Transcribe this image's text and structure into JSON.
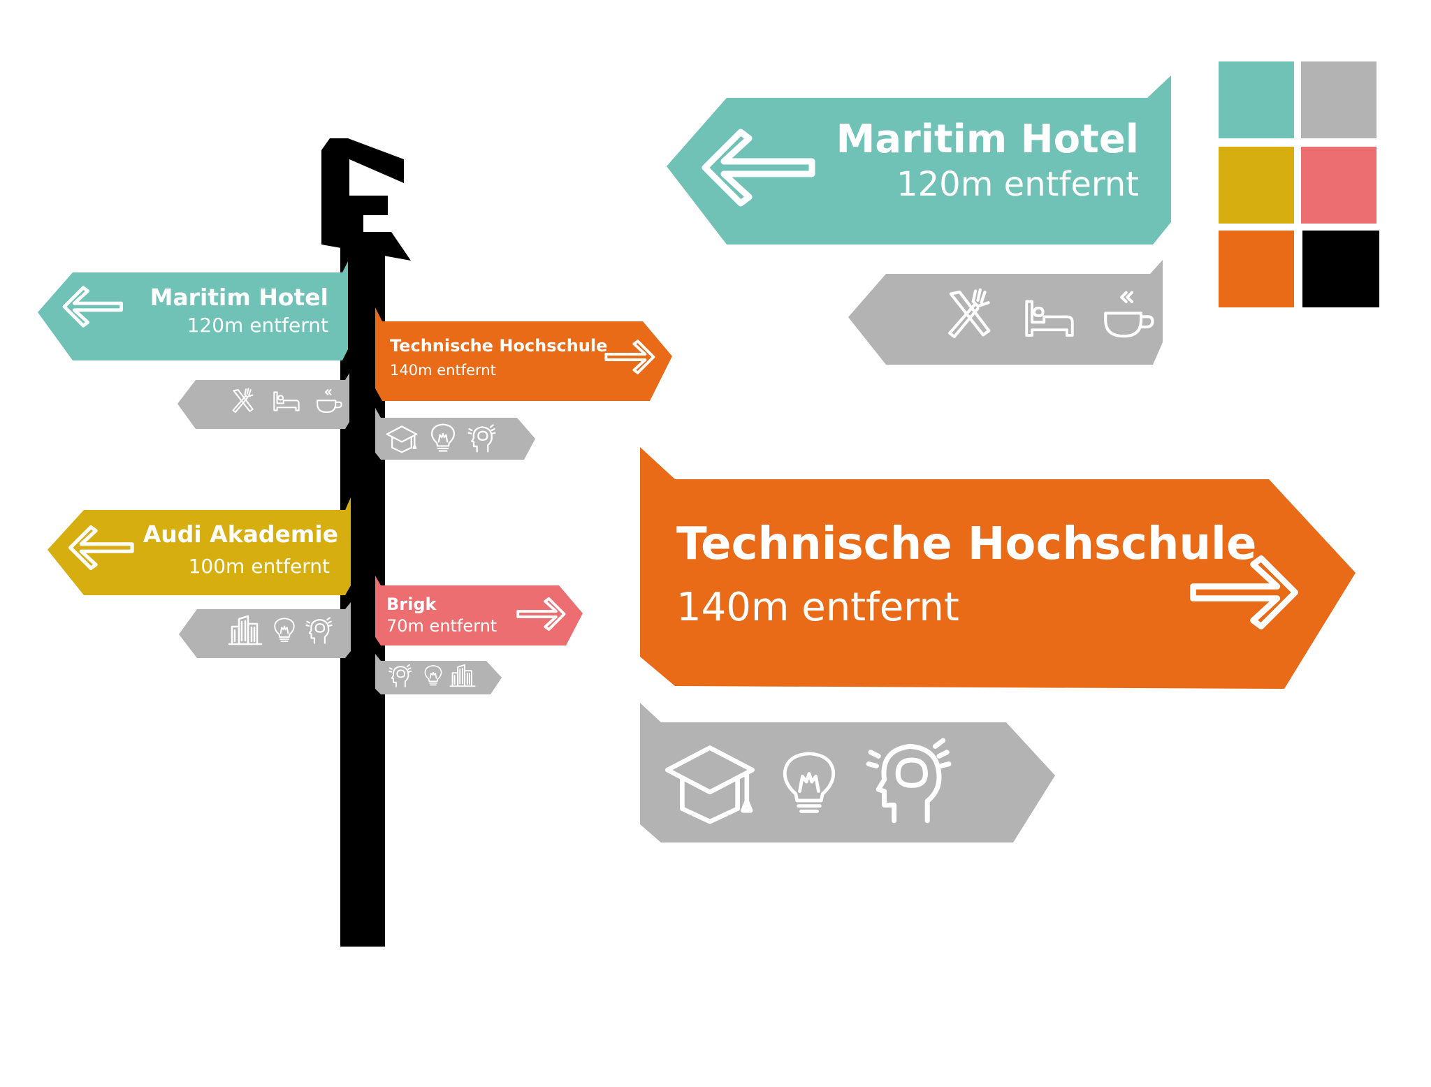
{
  "colors": {
    "teal": "#71c2b6",
    "gray": "#b3b3b3",
    "mustard": "#d6ae0f",
    "salmon": "#ec6e71",
    "orange": "#e96a17",
    "black": "#000000"
  },
  "palette": [
    "#71c2b6",
    "#b3b3b3",
    "#d6ae0f",
    "#ec6e71",
    "#e96a17",
    "#000000"
  ],
  "post": {
    "logo_letter": "G",
    "signs": {
      "maritim": {
        "title": "Maritim Hotel",
        "distance": "120m entfernt",
        "direction": "left"
      },
      "technische": {
        "title": "Technische Hochschule",
        "distance": "140m entfernt",
        "direction": "right"
      },
      "audi": {
        "title": "Audi Akademie",
        "distance": "100m entfernt",
        "direction": "left"
      },
      "brigk": {
        "title": "Brigk",
        "distance": "70m entfernt",
        "direction": "right"
      }
    },
    "icon_boards": {
      "maritim": [
        "cutlery-icon",
        "bed-icon",
        "coffee-cup-icon"
      ],
      "technische": [
        "graduation-cap-icon",
        "lightbulb-icon",
        "thinking-head-icon"
      ],
      "audi": [
        "city-buildings-icon",
        "lightbulb-icon",
        "thinking-head-icon"
      ],
      "brigk": [
        "thinking-head-icon",
        "lightbulb-icon",
        "city-buildings-icon"
      ]
    }
  },
  "detail": {
    "maritim": {
      "title": "Maritim Hotel",
      "distance": "120m entfernt",
      "icons": [
        "cutlery-icon",
        "bed-icon",
        "coffee-cup-icon"
      ]
    },
    "technische": {
      "title": "Technische Hochschule",
      "distance": "140m entfernt",
      "icons": [
        "graduation-cap-icon",
        "lightbulb-icon",
        "thinking-head-icon"
      ]
    }
  }
}
